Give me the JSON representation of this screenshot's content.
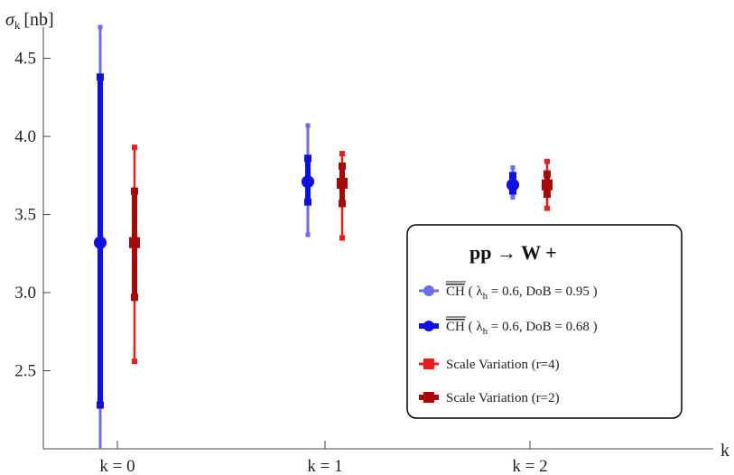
{
  "chart_data": {
    "type": "errorbar",
    "ylabel_symbol": "σ",
    "ylabel_sub": "k",
    "ylabel_unit": "[nb]",
    "xlabel": "k",
    "categories": [
      "k = 0",
      "k = 1",
      "k = 2"
    ],
    "ylim": [
      2.0,
      4.7
    ],
    "yticks": [
      "2.5",
      "3.0",
      "3.5",
      "4.0",
      "4.5"
    ],
    "ytick_values": [
      2.5,
      3.0,
      3.5,
      4.0,
      4.5
    ],
    "legend_title": "pp  → W +",
    "legend_position": "bottom-right",
    "series": [
      {
        "name": "CH ( λh = 0.6, DoB = 0.95 )",
        "label_overline": "CH",
        "label_rest_a": " ( λ",
        "label_sub": "h",
        "label_rest_b": " = 0.6,  DoB = 0.95 )",
        "color": "#6b6bf0",
        "marker": "circle",
        "points": [
          {
            "k": 0,
            "center": 3.32,
            "low": 1.85,
            "high": 4.7
          },
          {
            "k": 1,
            "center": 3.71,
            "low": 3.37,
            "high": 4.07
          },
          {
            "k": 2,
            "center": 3.69,
            "low": 3.61,
            "high": 3.8
          }
        ]
      },
      {
        "name": "CH ( λh = 0.6, DoB = 0.68 )",
        "label_overline": "CH",
        "label_rest_a": " ( λ",
        "label_sub": "h",
        "label_rest_b": " = 0.6,  DoB = 0.68 )",
        "color": "#1010e6",
        "marker": "circle",
        "points": [
          {
            "k": 0,
            "center": 3.32,
            "low": 2.28,
            "high": 4.38
          },
          {
            "k": 1,
            "center": 3.71,
            "low": 3.58,
            "high": 3.86
          },
          {
            "k": 2,
            "center": 3.69,
            "low": 3.65,
            "high": 3.75
          }
        ]
      },
      {
        "name": "Scale Variation (r=4)",
        "color": "#ee1c1c",
        "marker": "square",
        "points": [
          {
            "k": 0,
            "center": 3.32,
            "low": 2.56,
            "high": 3.93
          },
          {
            "k": 1,
            "center": 3.7,
            "low": 3.35,
            "high": 3.89
          },
          {
            "k": 2,
            "center": 3.69,
            "low": 3.54,
            "high": 3.84
          }
        ]
      },
      {
        "name": "Scale Variation (r=2)",
        "color": "#a80808",
        "marker": "square",
        "points": [
          {
            "k": 0,
            "center": 3.32,
            "low": 2.97,
            "high": 3.65
          },
          {
            "k": 1,
            "center": 3.7,
            "low": 3.57,
            "high": 3.81
          },
          {
            "k": 2,
            "center": 3.69,
            "low": 3.63,
            "high": 3.76
          }
        ]
      }
    ]
  }
}
